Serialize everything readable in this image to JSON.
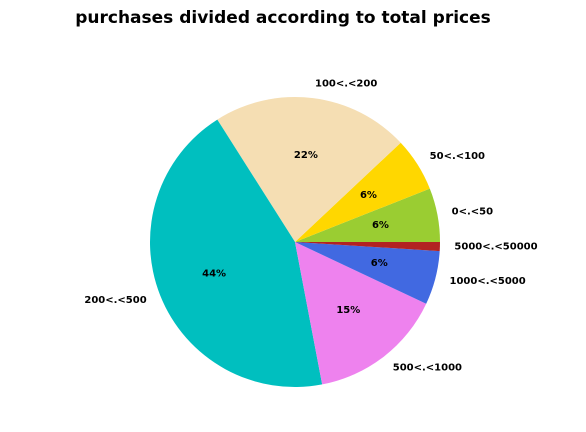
{
  "chart_data": {
    "type": "pie",
    "title": "purchases divided according to total prices",
    "slices": [
      {
        "label": "0<.<50",
        "value": 6,
        "pct_label": "6%",
        "color": "#9acd32"
      },
      {
        "label": "50<.<100",
        "value": 6,
        "pct_label": "6%",
        "color": "#ffd700"
      },
      {
        "label": "100<.<200",
        "value": 22,
        "pct_label": "22%",
        "color": "#f5deb3"
      },
      {
        "label": "200<.<500",
        "value": 44,
        "pct_label": "44%",
        "color": "#00bfbf"
      },
      {
        "label": "500<.<1000",
        "value": 15,
        "pct_label": "15%",
        "color": "#ee82ee"
      },
      {
        "label": "1000<.<5000",
        "value": 6,
        "pct_label": "6%",
        "color": "#4169e1"
      },
      {
        "label": "5000<.<50000",
        "value": 1,
        "pct_label": "",
        "color": "#b22222"
      }
    ],
    "start_angle_deg": 0,
    "direction": "counterclockwise"
  }
}
